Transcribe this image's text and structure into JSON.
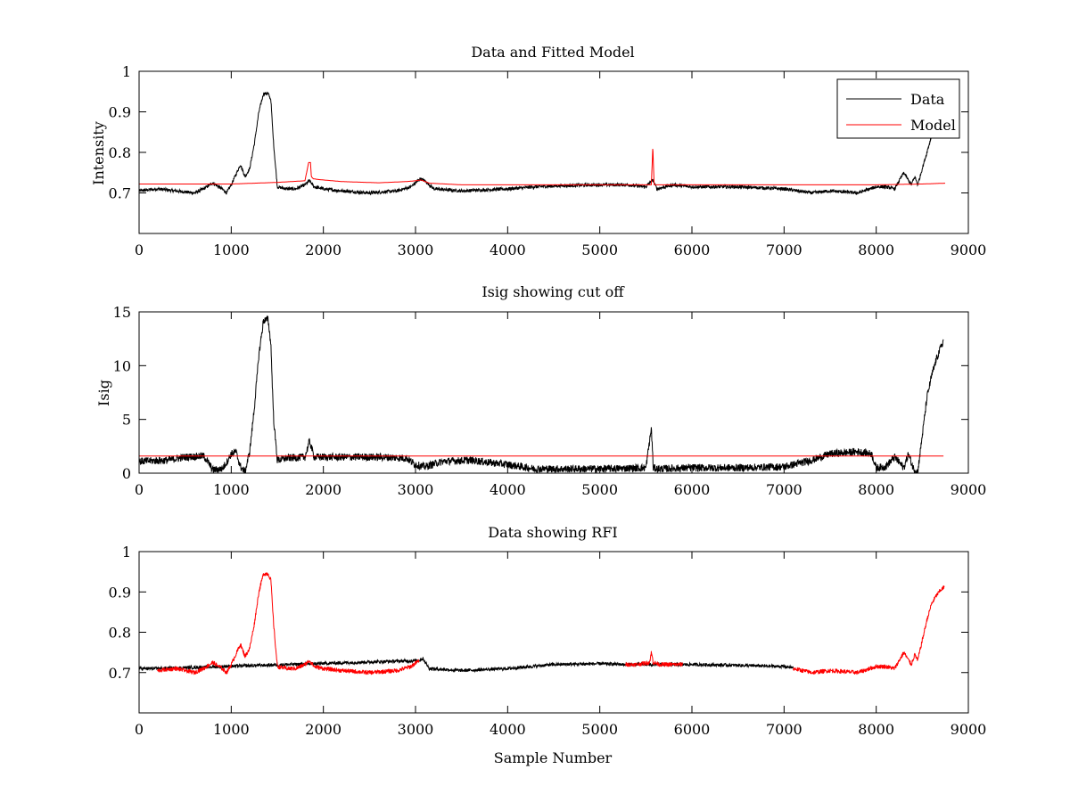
{
  "figure": {
    "background": "#ffffff"
  },
  "chart_data": [
    {
      "type": "line",
      "title": "Data and Fitted Model",
      "xlabel": "",
      "ylabel": "Intensity",
      "xlim": [
        0,
        9000
      ],
      "ylim": [
        0.6,
        1.0
      ],
      "xticks": [
        0,
        1000,
        2000,
        3000,
        4000,
        5000,
        6000,
        7000,
        8000,
        9000
      ],
      "yticks": [
        0.7,
        0.8,
        0.9,
        1
      ],
      "ytick_labels": [
        "0.7",
        "0.8",
        "0.9",
        "1"
      ],
      "legend": {
        "placement": "top-right",
        "entries": [
          "Data",
          "Model"
        ]
      },
      "series": [
        {
          "name": "Data",
          "color": "#000000",
          "noise": 0.004,
          "x": [
            0,
            200,
            400,
            600,
            700,
            800,
            900,
            950,
            1000,
            1050,
            1100,
            1150,
            1200,
            1250,
            1300,
            1350,
            1400,
            1430,
            1460,
            1500,
            1600,
            1700,
            1800,
            1850,
            1900,
            2000,
            2200,
            2500,
            2800,
            2950,
            3000,
            3050,
            3100,
            3200,
            3500,
            4000,
            4300,
            4600,
            5000,
            5300,
            5500,
            5560,
            5580,
            5620,
            5800,
            6000,
            6500,
            7000,
            7300,
            7500,
            7800,
            8000,
            8100,
            8200,
            8300,
            8380,
            8420,
            8450,
            8500,
            8550,
            8600
          ],
          "y": [
            0.705,
            0.71,
            0.705,
            0.7,
            0.71,
            0.725,
            0.71,
            0.7,
            0.72,
            0.745,
            0.77,
            0.74,
            0.76,
            0.82,
            0.9,
            0.945,
            0.945,
            0.93,
            0.82,
            0.715,
            0.71,
            0.71,
            0.72,
            0.73,
            0.715,
            0.71,
            0.705,
            0.7,
            0.705,
            0.715,
            0.725,
            0.735,
            0.73,
            0.71,
            0.705,
            0.71,
            0.715,
            0.718,
            0.72,
            0.72,
            0.715,
            0.73,
            0.73,
            0.71,
            0.72,
            0.715,
            0.715,
            0.71,
            0.7,
            0.705,
            0.7,
            0.715,
            0.715,
            0.71,
            0.75,
            0.72,
            0.74,
            0.72,
            0.76,
            0.8,
            0.84
          ]
        },
        {
          "name": "Model",
          "color": "#ff0000",
          "noise": 0,
          "x": [
            0,
            1000,
            1500,
            1800,
            1840,
            1860,
            1870,
            1890,
            1950,
            2200,
            2600,
            2900,
            3000,
            3060,
            3150,
            3500,
            4500,
            5500,
            5560,
            5575,
            5590,
            5620,
            6000,
            7000,
            8000,
            8500,
            8750
          ],
          "y": [
            0.722,
            0.722,
            0.726,
            0.73,
            0.775,
            0.775,
            0.74,
            0.735,
            0.733,
            0.728,
            0.725,
            0.728,
            0.73,
            0.732,
            0.724,
            0.72,
            0.72,
            0.72,
            0.72,
            0.815,
            0.72,
            0.72,
            0.72,
            0.72,
            0.72,
            0.722,
            0.724
          ]
        }
      ]
    },
    {
      "type": "line",
      "title": "Isig showing cut off",
      "xlabel": "",
      "ylabel": "Isig",
      "xlim": [
        0,
        9000
      ],
      "ylim": [
        0,
        15
      ],
      "xticks": [
        0,
        1000,
        2000,
        3000,
        4000,
        5000,
        6000,
        7000,
        8000,
        9000
      ],
      "yticks": [
        0,
        5,
        10,
        15
      ],
      "ytick_labels": [
        "0",
        "5",
        "10",
        "15"
      ],
      "series": [
        {
          "color": "#000000",
          "noise": 0.35,
          "x": [
            0,
            300,
            500,
            700,
            750,
            800,
            900,
            950,
            1000,
            1050,
            1100,
            1150,
            1200,
            1250,
            1300,
            1350,
            1400,
            1430,
            1460,
            1500,
            1600,
            1800,
            1850,
            1900,
            2200,
            2600,
            2900,
            3000,
            3100,
            3300,
            3600,
            4000,
            4300,
            5000,
            5500,
            5560,
            5580,
            5620,
            6000,
            6500,
            7000,
            7300,
            7500,
            7800,
            7950,
            8000,
            8100,
            8200,
            8300,
            8350,
            8400,
            8450,
            8500,
            8550,
            8600,
            8650,
            8700,
            8730
          ],
          "y": [
            1.1,
            1.2,
            1.5,
            1.6,
            1.0,
            0.3,
            0.4,
            1.0,
            1.8,
            2.0,
            0.6,
            0.1,
            2.0,
            6.0,
            11.0,
            14.2,
            14.3,
            12.0,
            5.0,
            1.2,
            1.4,
            1.5,
            3.0,
            1.5,
            1.5,
            1.5,
            1.4,
            0.8,
            0.6,
            1.1,
            1.2,
            0.8,
            0.4,
            0.4,
            0.5,
            4.2,
            0.5,
            0.4,
            0.5,
            0.5,
            0.6,
            1.2,
            1.8,
            2.0,
            1.8,
            0.5,
            0.6,
            1.5,
            0.5,
            1.8,
            0.5,
            0.1,
            3.5,
            7.0,
            9.0,
            10.5,
            11.7,
            12.3
          ]
        },
        {
          "color": "#ff0000",
          "noise": 0,
          "x": [
            0,
            8730
          ],
          "y": [
            1.6,
            1.6
          ]
        }
      ]
    },
    {
      "type": "line",
      "title": "Data showing RFI",
      "xlabel": "Sample Number",
      "ylabel": "",
      "xlim": [
        0,
        9000
      ],
      "ylim": [
        0.6,
        1.0
      ],
      "xticks": [
        0,
        1000,
        2000,
        3000,
        4000,
        5000,
        6000,
        7000,
        8000,
        9000
      ],
      "yticks": [
        0.7,
        0.8,
        0.9,
        1
      ],
      "ytick_labels": [
        "0.7",
        "0.8",
        "0.9",
        "1"
      ],
      "series": [
        {
          "color": "#000000",
          "noise": 0.004,
          "x": [
            0,
            200,
            3040,
            3080,
            3150,
            3500,
            4000,
            4500,
            5000,
            5280,
            5900,
            6000,
            6500,
            7000,
            7100
          ],
          "y": [
            0.71,
            0.71,
            0.73,
            0.735,
            0.71,
            0.705,
            0.71,
            0.72,
            0.722,
            0.72,
            0.72,
            0.72,
            0.718,
            0.715,
            0.712
          ]
        },
        {
          "color": "#ff0000",
          "noise": 0.005,
          "marker": true,
          "x": [
            200,
            400,
            600,
            700,
            800,
            900,
            950,
            1000,
            1050,
            1100,
            1150,
            1200,
            1250,
            1300,
            1350,
            1400,
            1430,
            1460,
            1500,
            1600,
            1700,
            1800,
            1850,
            1900,
            2000,
            2200,
            2500,
            2800,
            2950,
            3040
          ],
          "y": [
            0.705,
            0.71,
            0.7,
            0.71,
            0.725,
            0.71,
            0.7,
            0.72,
            0.745,
            0.77,
            0.74,
            0.76,
            0.82,
            0.9,
            0.945,
            0.945,
            0.93,
            0.82,
            0.715,
            0.71,
            0.71,
            0.72,
            0.73,
            0.715,
            0.71,
            0.705,
            0.7,
            0.705,
            0.715,
            0.73
          ]
        },
        {
          "color": "#ff0000",
          "noise": 0.005,
          "marker": true,
          "x": [
            5280,
            5400,
            5540,
            5560,
            5580,
            5650,
            5800,
            5900
          ],
          "y": [
            0.72,
            0.72,
            0.725,
            0.75,
            0.725,
            0.72,
            0.72,
            0.72
          ]
        },
        {
          "color": "#ff0000",
          "noise": 0.005,
          "marker": true,
          "x": [
            7100,
            7300,
            7500,
            7800,
            8000,
            8100,
            8200,
            8300,
            8380,
            8420,
            8450,
            8500,
            8550,
            8600,
            8650,
            8700,
            8740
          ],
          "y": [
            0.71,
            0.7,
            0.705,
            0.7,
            0.715,
            0.715,
            0.71,
            0.75,
            0.72,
            0.745,
            0.73,
            0.78,
            0.83,
            0.87,
            0.89,
            0.905,
            0.912
          ]
        }
      ]
    }
  ]
}
